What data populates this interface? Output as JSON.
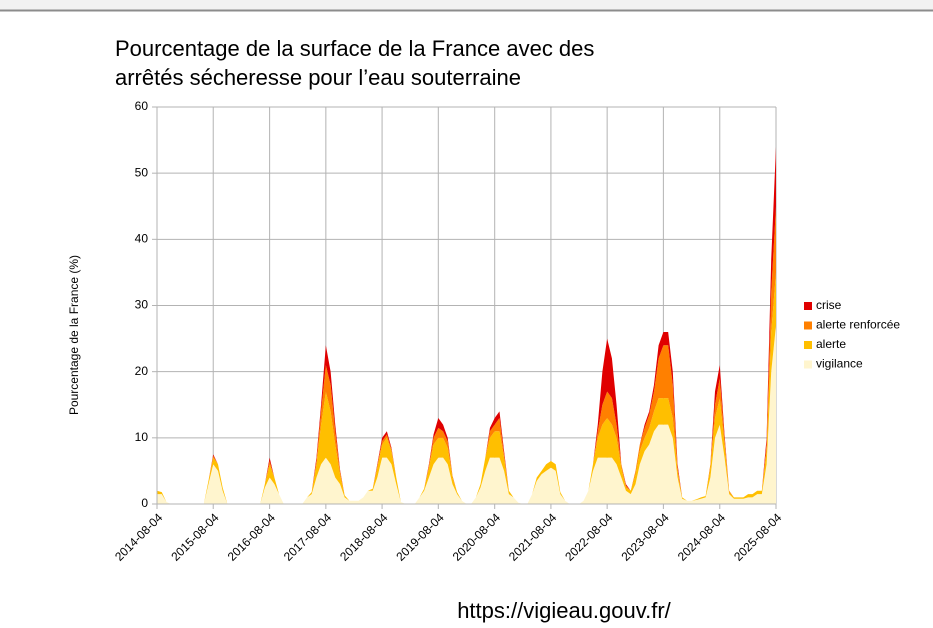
{
  "chart_data": {
    "type": "stacked_area",
    "title": [
      "Pourcentage de la surface de la  France avec des",
      "arrêtés sécheresse pour l’eau souterraine"
    ],
    "y_label": "Pourcentage de la France (%)",
    "annotation": "https://vigieau.gouv.fr/",
    "x": [
      "2014-08-04",
      "2014-09-04",
      "2014-10-04",
      "2014-11-04",
      "2014-12-04",
      "2015-01-04",
      "2015-02-04",
      "2015-03-04",
      "2015-04-04",
      "2015-05-04",
      "2015-06-04",
      "2015-07-04",
      "2015-08-04",
      "2015-09-04",
      "2015-10-04",
      "2015-11-04",
      "2015-12-04",
      "2016-01-04",
      "2016-02-04",
      "2016-03-04",
      "2016-04-04",
      "2016-05-04",
      "2016-06-04",
      "2016-07-04",
      "2016-08-04",
      "2016-09-04",
      "2016-10-04",
      "2016-11-04",
      "2016-12-04",
      "2017-01-04",
      "2017-02-04",
      "2017-03-04",
      "2017-04-04",
      "2017-05-04",
      "2017-06-04",
      "2017-07-04",
      "2017-08-04",
      "2017-09-04",
      "2017-10-04",
      "2017-11-04",
      "2017-12-04",
      "2018-01-04",
      "2018-02-04",
      "2018-03-04",
      "2018-04-04",
      "2018-05-04",
      "2018-06-04",
      "2018-07-04",
      "2018-08-04",
      "2018-09-04",
      "2018-10-04",
      "2018-11-04",
      "2018-12-04",
      "2019-01-04",
      "2019-02-04",
      "2019-03-04",
      "2019-04-04",
      "2019-05-04",
      "2019-06-04",
      "2019-07-04",
      "2019-08-04",
      "2019-09-04",
      "2019-10-04",
      "2019-11-04",
      "2019-12-04",
      "2020-01-04",
      "2020-02-04",
      "2020-03-04",
      "2020-04-04",
      "2020-05-04",
      "2020-06-04",
      "2020-07-04",
      "2020-08-04",
      "2020-09-04",
      "2020-10-04",
      "2020-11-04",
      "2020-12-04",
      "2021-01-04",
      "2021-02-04",
      "2021-03-04",
      "2021-04-04",
      "2021-05-04",
      "2021-06-04",
      "2021-07-04",
      "2021-08-04",
      "2021-09-04",
      "2021-10-04",
      "2021-11-04",
      "2021-12-04",
      "2022-01-04",
      "2022-02-04",
      "2022-03-04",
      "2022-04-04",
      "2022-05-04",
      "2022-06-04",
      "2022-07-04",
      "2022-08-04",
      "2022-09-04",
      "2022-10-04",
      "2022-11-04",
      "2022-12-04",
      "2023-01-04",
      "2023-02-04",
      "2023-03-04",
      "2023-04-04",
      "2023-05-04",
      "2023-06-04",
      "2023-07-04",
      "2023-08-04",
      "2023-09-04",
      "2023-10-04",
      "2023-11-04",
      "2023-12-04",
      "2024-01-04",
      "2024-02-04",
      "2024-03-04",
      "2024-04-04",
      "2024-05-04",
      "2024-06-04",
      "2024-07-04",
      "2024-08-04",
      "2024-09-04",
      "2024-10-04",
      "2024-11-04",
      "2024-12-04",
      "2025-01-04",
      "2025-02-04",
      "2025-03-04",
      "2025-04-04",
      "2025-05-04",
      "2025-06-04",
      "2025-07-04",
      "2025-08-04"
    ],
    "series": [
      {
        "name": "vigilance",
        "color": "#fff5ce",
        "values": [
          1.5,
          1.5,
          0.3,
          0,
          0,
          0,
          0,
          0,
          0,
          0,
          0,
          3,
          6,
          5,
          2,
          0,
          0,
          0,
          0,
          0,
          0,
          0,
          0,
          2.5,
          4,
          3,
          1.5,
          0,
          0,
          0,
          0,
          0,
          1,
          1.5,
          4,
          6,
          7,
          6,
          4,
          3,
          1,
          0.5,
          0.5,
          0.5,
          1,
          2,
          2,
          4,
          7,
          7,
          6,
          3,
          0.3,
          0,
          0,
          0,
          1,
          2,
          4,
          6,
          7,
          7,
          6,
          3,
          1.5,
          0.5,
          0,
          0,
          1,
          2.5,
          5,
          7,
          7,
          7,
          5,
          1.5,
          1,
          0.2,
          0,
          0,
          1.5,
          3.5,
          4.5,
          5,
          5.5,
          5,
          1.5,
          0.5,
          0,
          0,
          0,
          0.5,
          2,
          5,
          7,
          7,
          7,
          7,
          6,
          4,
          2,
          1.5,
          3,
          6,
          8,
          9,
          11,
          12,
          12,
          12,
          10,
          4,
          0.8,
          0.5,
          0.5,
          0.6,
          0.8,
          1,
          4,
          10,
          12,
          7,
          1.5,
          0.8,
          0.8,
          0.8,
          1,
          1,
          1.5,
          1.5,
          6,
          20,
          27
        ]
      },
      {
        "name": "alerte",
        "color": "#ffbf00",
        "values": [
          0.5,
          0.3,
          0,
          0,
          0,
          0,
          0,
          0,
          0,
          0,
          0,
          0.5,
          1,
          1,
          0.5,
          0,
          0,
          0,
          0,
          0,
          0,
          0,
          0,
          0.5,
          2,
          1,
          0,
          0,
          0,
          0,
          0,
          0,
          0,
          0.3,
          2,
          6,
          10,
          8,
          5,
          1.5,
          0.3,
          0,
          0,
          0,
          0,
          0,
          0.3,
          1.5,
          2,
          3,
          2,
          1,
          0,
          0,
          0,
          0,
          0,
          0.3,
          1.5,
          3,
          3,
          3,
          2.5,
          1,
          0.3,
          0,
          0,
          0,
          0,
          0.5,
          2,
          3,
          4,
          4,
          2,
          0.5,
          0,
          0,
          0,
          0,
          0,
          0.5,
          0.5,
          1,
          1,
          1,
          0.3,
          0,
          0,
          0,
          0,
          0,
          0,
          1,
          3,
          5,
          6,
          5,
          4,
          1.5,
          0.5,
          0.5,
          1.5,
          2,
          2,
          2.5,
          3,
          4,
          4,
          4,
          3,
          1,
          0.2,
          0,
          0,
          0.1,
          0.2,
          0.2,
          1.5,
          3,
          4,
          2,
          0.3,
          0.2,
          0.2,
          0.2,
          0.5,
          0.5,
          0.5,
          0.5,
          2,
          6,
          8
        ]
      },
      {
        "name": "alerte renforcée",
        "color": "#ff8000",
        "values": [
          0,
          0,
          0,
          0,
          0,
          0,
          0,
          0,
          0,
          0,
          0,
          0,
          0.3,
          0,
          0,
          0,
          0,
          0,
          0,
          0,
          0,
          0,
          0,
          0,
          0.5,
          0,
          0,
          0,
          0,
          0,
          0,
          0,
          0,
          0,
          0.5,
          2,
          4,
          4,
          2,
          0.5,
          0,
          0,
          0,
          0,
          0,
          0,
          0,
          0.3,
          0.5,
          0.5,
          0.3,
          0,
          0,
          0,
          0,
          0,
          0,
          0,
          0.3,
          1,
          1.5,
          1,
          1,
          0.3,
          0,
          0,
          0,
          0,
          0,
          0,
          0,
          1,
          1,
          2,
          0.5,
          0,
          0,
          0,
          0,
          0,
          0,
          0,
          0,
          0,
          0,
          0,
          0,
          0,
          0,
          0,
          0,
          0,
          0,
          0,
          1,
          3,
          4,
          4,
          2,
          0.5,
          0.3,
          0,
          0.5,
          1,
          1.5,
          2,
          3,
          6,
          8,
          8,
          5,
          0.5,
          0,
          0,
          0,
          0,
          0,
          0,
          0.5,
          2,
          3,
          1,
          0.2,
          0,
          0,
          0,
          0,
          0,
          0,
          0,
          1,
          6,
          10
        ]
      },
      {
        "name": "crise",
        "color": "#e00000",
        "values": [
          0,
          0,
          0,
          0,
          0,
          0,
          0,
          0,
          0,
          0,
          0,
          0,
          0.2,
          0,
          0,
          0,
          0,
          0,
          0,
          0,
          0,
          0,
          0,
          0,
          0.5,
          0,
          0,
          0,
          0,
          0,
          0,
          0,
          0,
          0,
          0.5,
          1,
          3,
          2,
          1,
          0.2,
          0,
          0,
          0,
          0,
          0,
          0,
          0,
          0.2,
          0.5,
          0.5,
          0.2,
          0,
          0,
          0,
          0,
          0,
          0,
          0,
          0.2,
          0.5,
          1.5,
          1,
          0.5,
          0,
          0,
          0,
          0,
          0,
          0,
          0,
          0,
          0.5,
          1,
          1,
          0.5,
          0,
          0,
          0,
          0,
          0,
          0,
          0,
          0,
          0,
          0,
          0,
          0,
          0,
          0,
          0,
          0,
          0,
          0,
          0,
          1,
          5,
          8,
          6,
          3,
          0,
          0.2,
          0,
          0,
          0,
          0.5,
          0.5,
          1,
          2,
          2,
          2,
          2,
          0.5,
          0,
          0,
          0,
          0,
          0,
          0,
          0,
          2,
          2,
          0.5,
          0,
          0,
          0,
          0,
          0,
          0,
          0,
          0,
          1,
          5,
          9
        ]
      }
    ],
    "xlim": [
      "2014-08-04",
      "2025-08-04"
    ],
    "xticks": [
      "2014-08-04",
      "2015-08-04",
      "2016-08-04",
      "2017-08-04",
      "2018-08-04",
      "2019-08-04",
      "2020-08-04",
      "2021-08-04",
      "2022-08-04",
      "2023-08-04",
      "2024-08-04",
      "2025-08-04"
    ],
    "ylim": [
      0,
      60
    ],
    "yticks": [
      0,
      10,
      20,
      30,
      40,
      50,
      60
    ],
    "grid": true,
    "legend": "right"
  }
}
